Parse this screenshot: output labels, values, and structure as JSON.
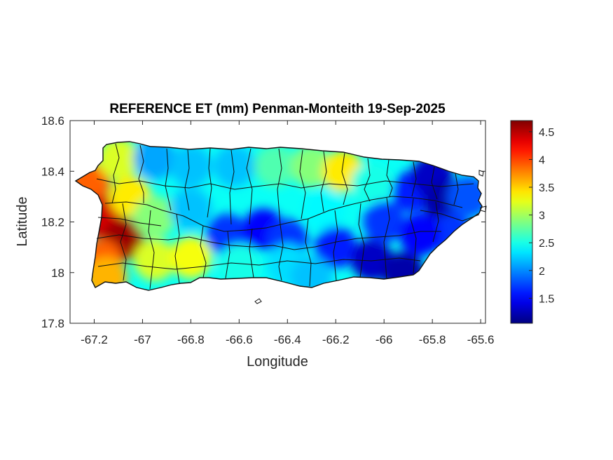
{
  "title": "REFERENCE ET (mm) Penman-Monteith 19-Sep-2025",
  "xlabel": "Longitude",
  "ylabel": "Latitude",
  "chart_data": {
    "type": "heatmap",
    "title": "REFERENCE ET (mm) Penman-Monteith 19-Sep-2025",
    "xlabel": "Longitude",
    "ylabel": "Latitude",
    "xlim": [
      -67.3,
      -65.58
    ],
    "ylim": [
      17.8,
      18.6
    ],
    "x_ticks": [
      -67.2,
      -67,
      -66.8,
      -66.6,
      -66.4,
      -66.2,
      -66,
      -65.8,
      -65.6
    ],
    "x_tick_labels": [
      "-67.2",
      "-67",
      "-66.8",
      "-66.6",
      "-66.4",
      "-66.2",
      "-66",
      "-65.8",
      "-65.6"
    ],
    "y_ticks": [
      17.8,
      18,
      18.2,
      18.4,
      18.6
    ],
    "y_tick_labels": [
      "17.8",
      "18",
      "18.2",
      "18.4",
      "18.6"
    ],
    "colormap": "jet",
    "colorbar": {
      "clim": [
        1.05,
        4.7
      ],
      "ticks": [
        1.5,
        2,
        2.5,
        3,
        3.5,
        4,
        4.5
      ],
      "tick_labels": [
        "1.5",
        "2",
        "2.5",
        "3",
        "3.5",
        "4",
        "4.5"
      ]
    },
    "region": "Puerto Rico",
    "field_samples": [
      {
        "lon": -67.22,
        "lat": 18.35,
        "value": 3.9
      },
      {
        "lon": -67.17,
        "lat": 18.22,
        "value": 4.4
      },
      {
        "lon": -67.08,
        "lat": 18.13,
        "value": 4.6
      },
      {
        "lon": -67.17,
        "lat": 18.05,
        "value": 3.9
      },
      {
        "lon": -67.15,
        "lat": 17.98,
        "value": 3.6
      },
      {
        "lon": -67.05,
        "lat": 18.3,
        "value": 3.4
      },
      {
        "lon": -67.1,
        "lat": 18.45,
        "value": 3.2
      },
      {
        "lon": -66.95,
        "lat": 18.05,
        "value": 3.2
      },
      {
        "lon": -66.8,
        "lat": 18.06,
        "value": 3.3
      },
      {
        "lon": -66.95,
        "lat": 18.22,
        "value": 2.9
      },
      {
        "lon": -66.95,
        "lat": 18.45,
        "value": 2.1
      },
      {
        "lon": -66.8,
        "lat": 18.42,
        "value": 2.2
      },
      {
        "lon": -66.8,
        "lat": 18.25,
        "value": 2.2
      },
      {
        "lon": -66.65,
        "lat": 18.15,
        "value": 1.7
      },
      {
        "lon": -66.5,
        "lat": 18.17,
        "value": 1.5
      },
      {
        "lon": -66.4,
        "lat": 18.13,
        "value": 1.7
      },
      {
        "lon": -66.62,
        "lat": 18.42,
        "value": 2.2
      },
      {
        "lon": -66.45,
        "lat": 18.42,
        "value": 2.7
      },
      {
        "lon": -66.3,
        "lat": 18.42,
        "value": 2.9
      },
      {
        "lon": -66.17,
        "lat": 18.4,
        "value": 3.4
      },
      {
        "lon": -66.05,
        "lat": 18.35,
        "value": 2.5
      },
      {
        "lon": -66.6,
        "lat": 18.03,
        "value": 2.5
      },
      {
        "lon": -66.4,
        "lat": 18.03,
        "value": 2.3
      },
      {
        "lon": -66.25,
        "lat": 18.25,
        "value": 2.4
      },
      {
        "lon": -66.2,
        "lat": 18.1,
        "value": 1.6
      },
      {
        "lon": -66.05,
        "lat": 18.05,
        "value": 1.3
      },
      {
        "lon": -65.92,
        "lat": 18.0,
        "value": 1.2
      },
      {
        "lon": -66.0,
        "lat": 18.2,
        "value": 1.7
      },
      {
        "lon": -65.88,
        "lat": 18.32,
        "value": 1.6
      },
      {
        "lon": -65.8,
        "lat": 18.38,
        "value": 1.3
      },
      {
        "lon": -65.75,
        "lat": 18.28,
        "value": 1.2
      },
      {
        "lon": -65.72,
        "lat": 18.15,
        "value": 1.7
      },
      {
        "lon": -65.65,
        "lat": 18.3,
        "value": 1.8
      },
      {
        "lon": -65.85,
        "lat": 18.15,
        "value": 1.5
      },
      {
        "lon": -66.3,
        "lat": 17.98,
        "value": 2.2
      }
    ]
  }
}
